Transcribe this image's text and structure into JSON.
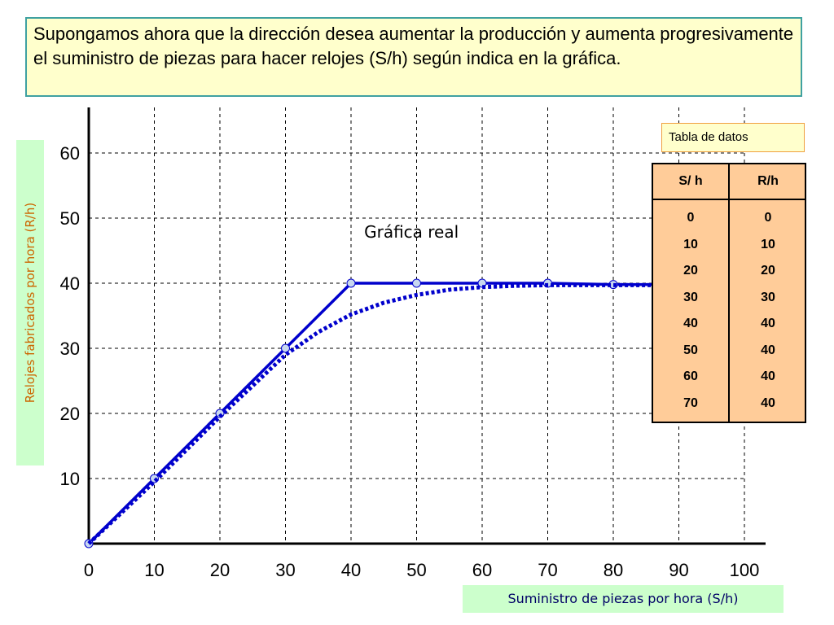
{
  "intro_text": "Supongamos ahora que la dirección desea aumentar la producción y aumenta progresivamente el suministro de piezas para hacer relojes (S/h) según indica en la gráfica.",
  "table_caption": "Tabla de datos",
  "table": {
    "headers": [
      "S/ h",
      "R/h"
    ],
    "s_values": [
      "0",
      "10",
      "20",
      "30",
      "40",
      "50",
      "60",
      "70"
    ],
    "r_values": [
      "0",
      "10",
      "20",
      "30",
      "40",
      "40",
      "40",
      "40"
    ]
  },
  "colors": {
    "line": "#0000cc",
    "marker_fill": "#c8d8f0",
    "axis": "#000000",
    "grid": "#000000"
  },
  "chart_data": {
    "type": "line",
    "xlabel": "Suministro de piezas por hora (S/h)",
    "ylabel": "Relojes fabricados por hora (R/h)",
    "xlim": [
      0,
      100
    ],
    "ylim": [
      0,
      67
    ],
    "x_ticks": [
      0,
      10,
      20,
      30,
      40,
      50,
      60,
      70,
      80,
      90,
      100
    ],
    "y_ticks": [
      10,
      20,
      30,
      40,
      50,
      60
    ],
    "grid": true,
    "annotation": "Gráfica real",
    "annotation_at": [
      42,
      47
    ],
    "series": [
      {
        "style": "solid",
        "markers": true,
        "x": [
          0,
          10,
          20,
          30,
          40,
          50,
          60,
          70,
          80,
          90
        ],
        "y": [
          0,
          10,
          20,
          30,
          40,
          40,
          40,
          40,
          39.8,
          39.8
        ]
      },
      {
        "style": "dotted",
        "markers": false,
        "x": [
          0,
          10,
          20,
          30,
          35,
          40,
          45,
          50,
          55,
          60,
          65,
          70,
          80,
          90
        ],
        "y": [
          0,
          9.5,
          19.5,
          29,
          32.5,
          35.2,
          37,
          38.2,
          39,
          39.4,
          39.6,
          39.7,
          39.7,
          39.7
        ]
      }
    ]
  }
}
